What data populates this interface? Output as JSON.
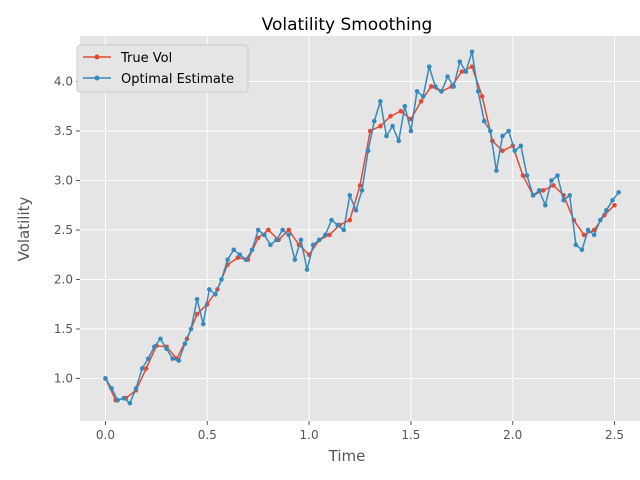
{
  "chart_data": {
    "type": "line",
    "title": "Volatility Smoothing",
    "xlabel": "Time",
    "ylabel": "Volatility",
    "xlim": [
      -0.125,
      2.625
    ],
    "ylim": [
      0.57,
      4.46
    ],
    "xticks": [
      0.0,
      0.5,
      1.0,
      1.5,
      2.0,
      2.5
    ],
    "xtick_labels": [
      "0.0",
      "0.5",
      "1.0",
      "1.5",
      "2.0",
      "2.5"
    ],
    "yticks": [
      1.0,
      1.5,
      2.0,
      2.5,
      3.0,
      3.5,
      4.0
    ],
    "ytick_labels": [
      "1.0",
      "1.5",
      "2.0",
      "2.5",
      "3.0",
      "3.5",
      "4.0"
    ],
    "grid": true,
    "legend_position": "upper-left",
    "series": [
      {
        "name": "True Vol",
        "color": "#E24A33",
        "x": [
          0.0,
          0.05,
          0.1,
          0.15,
          0.2,
          0.25,
          0.3,
          0.35,
          0.4,
          0.45,
          0.5,
          0.55,
          0.6,
          0.65,
          0.7,
          0.75,
          0.8,
          0.85,
          0.9,
          0.95,
          1.0,
          1.05,
          1.1,
          1.15,
          1.2,
          1.25,
          1.3,
          1.35,
          1.4,
          1.45,
          1.5,
          1.55,
          1.6,
          1.65,
          1.7,
          1.75,
          1.8,
          1.85,
          1.9,
          1.95,
          2.0,
          2.05,
          2.1,
          2.15,
          2.2,
          2.25,
          2.3,
          2.35,
          2.4,
          2.45,
          2.5
        ],
        "values": [
          1.0,
          0.78,
          0.8,
          0.88,
          1.1,
          1.33,
          1.32,
          1.2,
          1.4,
          1.65,
          1.75,
          1.9,
          2.15,
          2.22,
          2.2,
          2.42,
          2.5,
          2.4,
          2.5,
          2.35,
          2.25,
          2.4,
          2.45,
          2.55,
          2.6,
          2.95,
          3.5,
          3.55,
          3.65,
          3.7,
          3.62,
          3.8,
          3.95,
          3.9,
          3.95,
          4.1,
          4.15,
          3.85,
          3.4,
          3.3,
          3.35,
          3.05,
          2.85,
          2.9,
          2.95,
          2.85,
          2.6,
          2.45,
          2.5,
          2.65,
          2.75
        ]
      },
      {
        "name": "Optimal Estimate",
        "color": "#348ABD",
        "x": [
          0.0,
          0.03,
          0.06,
          0.09,
          0.12,
          0.15,
          0.18,
          0.21,
          0.24,
          0.27,
          0.3,
          0.33,
          0.36,
          0.39,
          0.42,
          0.45,
          0.48,
          0.51,
          0.54,
          0.57,
          0.6,
          0.63,
          0.66,
          0.69,
          0.72,
          0.75,
          0.78,
          0.81,
          0.84,
          0.87,
          0.9,
          0.93,
          0.96,
          0.99,
          1.02,
          1.05,
          1.08,
          1.11,
          1.14,
          1.17,
          1.2,
          1.23,
          1.26,
          1.29,
          1.32,
          1.35,
          1.38,
          1.41,
          1.44,
          1.47,
          1.5,
          1.53,
          1.56,
          1.59,
          1.62,
          1.65,
          1.68,
          1.71,
          1.74,
          1.77,
          1.8,
          1.83,
          1.86,
          1.89,
          1.92,
          1.95,
          1.98,
          2.01,
          2.04,
          2.07,
          2.1,
          2.13,
          2.16,
          2.19,
          2.22,
          2.25,
          2.28,
          2.31,
          2.34,
          2.37,
          2.4,
          2.43,
          2.46,
          2.49,
          2.52
        ],
        "values": [
          1.0,
          0.9,
          0.78,
          0.8,
          0.75,
          0.9,
          1.1,
          1.2,
          1.32,
          1.4,
          1.3,
          1.2,
          1.18,
          1.35,
          1.5,
          1.8,
          1.55,
          1.9,
          1.85,
          2.0,
          2.2,
          2.3,
          2.25,
          2.2,
          2.3,
          2.5,
          2.45,
          2.35,
          2.4,
          2.5,
          2.45,
          2.2,
          2.4,
          2.1,
          2.35,
          2.4,
          2.45,
          2.6,
          2.55,
          2.5,
          2.85,
          2.7,
          2.9,
          3.3,
          3.6,
          3.8,
          3.45,
          3.55,
          3.4,
          3.75,
          3.5,
          3.9,
          3.85,
          4.15,
          3.95,
          3.9,
          4.05,
          3.95,
          4.2,
          4.1,
          4.3,
          3.9,
          3.6,
          3.5,
          3.1,
          3.45,
          3.5,
          3.3,
          3.35,
          3.05,
          2.85,
          2.9,
          2.75,
          3.0,
          3.05,
          2.8,
          2.85,
          2.35,
          2.3,
          2.5,
          2.45,
          2.6,
          2.7,
          2.8,
          2.88
        ]
      }
    ]
  }
}
